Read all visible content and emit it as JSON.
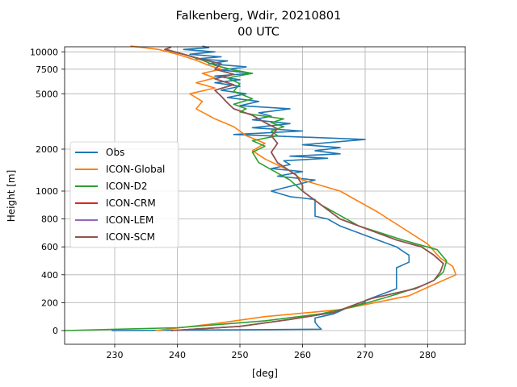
{
  "chart_data": {
    "type": "line",
    "title_line1": "Falkenberg, Wdir, 20210801",
    "title_line2": "00 UTC",
    "xlabel": "[deg]",
    "ylabel": "Height [m]",
    "xlim": [
      222,
      286
    ],
    "x_ticks": [
      230,
      240,
      250,
      260,
      270,
      280
    ],
    "y_ticks": [
      {
        "label": "0",
        "height": 0
      },
      {
        "label": "200",
        "height": 200
      },
      {
        "label": "400",
        "height": 400
      },
      {
        "label": "600",
        "height": 600
      },
      {
        "label": "800",
        "height": 800
      },
      {
        "label": "1000",
        "height": 1000
      },
      {
        "label": "2000",
        "height": 2000
      },
      {
        "label": "5000",
        "height": 5000
      },
      {
        "label": "7500",
        "height": 7500
      },
      {
        "label": "10000",
        "height": 10000
      }
    ],
    "y_scale": "piecewise: linear 0-1000 m, logarithmic above 1000 m",
    "grid": true,
    "legend_position": "center-left",
    "series": [
      {
        "name": "Obs",
        "color": "#1f77b4",
        "points": [
          [
            229.5,
            0
          ],
          [
            250,
            5
          ],
          [
            263,
            10
          ],
          [
            262.5,
            30
          ],
          [
            262,
            60
          ],
          [
            262,
            90
          ],
          [
            263,
            100
          ],
          [
            265,
            120
          ],
          [
            267,
            160
          ],
          [
            269,
            185
          ],
          [
            270,
            200
          ],
          [
            270,
            215
          ],
          [
            275,
            300
          ],
          [
            275,
            380
          ],
          [
            275,
            410
          ],
          [
            275,
            450
          ],
          [
            276,
            470
          ],
          [
            277,
            490
          ],
          [
            277,
            540
          ],
          [
            276,
            570
          ],
          [
            275,
            600
          ],
          [
            272,
            650
          ],
          [
            266,
            750
          ],
          [
            264,
            800
          ],
          [
            262,
            820
          ],
          [
            262,
            870
          ],
          [
            262,
            910
          ],
          [
            262,
            940
          ],
          [
            258,
            960
          ],
          [
            255,
            1000
          ],
          [
            262,
            1200
          ],
          [
            256,
            1280
          ],
          [
            260,
            1380
          ],
          [
            255,
            1450
          ],
          [
            258,
            1550
          ],
          [
            257,
            1650
          ],
          [
            264,
            1720
          ],
          [
            258,
            1780
          ],
          [
            266,
            1850
          ],
          [
            262,
            1950
          ],
          [
            266,
            2050
          ],
          [
            260,
            2150
          ],
          [
            270,
            2350
          ],
          [
            249,
            2550
          ],
          [
            260,
            2700
          ],
          [
            252,
            2850
          ],
          [
            258,
            3050
          ],
          [
            252,
            3250
          ],
          [
            255,
            3450
          ],
          [
            253,
            3650
          ],
          [
            258,
            3900
          ],
          [
            250,
            4100
          ],
          [
            253,
            4400
          ],
          [
            248,
            4700
          ],
          [
            251,
            5000
          ],
          [
            247,
            5300
          ],
          [
            250,
            5650
          ],
          [
            246,
            6000
          ],
          [
            250,
            6300
          ],
          [
            246,
            6700
          ],
          [
            252,
            7000
          ],
          [
            247,
            7400
          ],
          [
            251,
            7800
          ],
          [
            245,
            8200
          ],
          [
            248,
            8600
          ],
          [
            243,
            8900
          ],
          [
            247,
            9200
          ],
          [
            242,
            9600
          ],
          [
            246,
            10000
          ],
          [
            241,
            10400
          ],
          [
            245,
            10700
          ],
          [
            244,
            11000
          ]
        ]
      },
      {
        "name": "ICON-Global",
        "color": "#ff7f0e",
        "points": [
          [
            236.5,
            0
          ],
          [
            246,
            50
          ],
          [
            254,
            100
          ],
          [
            266,
            150
          ],
          [
            277,
            250
          ],
          [
            282,
            350
          ],
          [
            284.5,
            400
          ],
          [
            284,
            460
          ],
          [
            282,
            520
          ],
          [
            280,
            620
          ],
          [
            272,
            850
          ],
          [
            266,
            1000
          ],
          [
            260,
            1200
          ],
          [
            258,
            1400
          ],
          [
            254,
            1700
          ],
          [
            252,
            1950
          ],
          [
            254,
            2200
          ],
          [
            251,
            2500
          ],
          [
            249,
            2900
          ],
          [
            246,
            3300
          ],
          [
            243,
            3900
          ],
          [
            244,
            4400
          ],
          [
            242,
            5000
          ],
          [
            246,
            5500
          ],
          [
            243,
            6000
          ],
          [
            246,
            6500
          ],
          [
            244,
            7000
          ],
          [
            247,
            7500
          ],
          [
            245,
            8000
          ],
          [
            243,
            8700
          ],
          [
            240,
            9600
          ],
          [
            237,
            10400
          ],
          [
            232.5,
            11000
          ]
        ]
      },
      {
        "name": "ICON-D2",
        "color": "#2ca02c",
        "points": [
          [
            222,
            0
          ],
          [
            240,
            20
          ],
          [
            254,
            70
          ],
          [
            263,
            120
          ],
          [
            268,
            170
          ],
          [
            272,
            220
          ],
          [
            275,
            260
          ],
          [
            279,
            320
          ],
          [
            281,
            360
          ],
          [
            282.5,
            420
          ],
          [
            283,
            500
          ],
          [
            281.5,
            580
          ],
          [
            276,
            650
          ],
          [
            269,
            750
          ],
          [
            263,
            900
          ],
          [
            260,
            1000
          ],
          [
            258,
            1200
          ],
          [
            253,
            1600
          ],
          [
            252,
            1900
          ],
          [
            254,
            2100
          ],
          [
            252,
            2300
          ],
          [
            256,
            2500
          ],
          [
            255,
            2700
          ],
          [
            257,
            2900
          ],
          [
            255,
            3100
          ],
          [
            257,
            3300
          ],
          [
            252,
            3550
          ],
          [
            250,
            3700
          ],
          [
            251,
            3900
          ],
          [
            249,
            4200
          ],
          [
            252,
            4600
          ],
          [
            249,
            5200
          ],
          [
            250,
            5900
          ],
          [
            248,
            6500
          ],
          [
            252,
            7000
          ],
          [
            249,
            7400
          ],
          [
            246,
            8000
          ],
          [
            244,
            8700
          ],
          [
            241,
            9600
          ],
          [
            238,
            10500
          ]
        ]
      },
      {
        "name": "ICON-CRM",
        "color": "#d62728",
        "points": [
          [
            239,
            0
          ],
          [
            250,
            30
          ],
          [
            258,
            80
          ],
          [
            265,
            130
          ],
          [
            268,
            180
          ],
          [
            271,
            230
          ],
          [
            274,
            260
          ],
          [
            278,
            300
          ],
          [
            281,
            360
          ],
          [
            282,
            420
          ],
          [
            282.5,
            480
          ],
          [
            281,
            540
          ],
          [
            279,
            600
          ],
          [
            275,
            650
          ],
          [
            266,
            800
          ],
          [
            260,
            1000
          ],
          [
            260,
            1100
          ],
          [
            259,
            1300
          ],
          [
            256,
            1600
          ],
          [
            255,
            1900
          ],
          [
            256,
            2200
          ],
          [
            255,
            2500
          ],
          [
            256,
            2800
          ],
          [
            254,
            3100
          ],
          [
            252,
            3500
          ],
          [
            249,
            3900
          ],
          [
            248,
            4300
          ],
          [
            247,
            4800
          ],
          [
            246,
            5300
          ],
          [
            249,
            5800
          ],
          [
            246,
            6400
          ],
          [
            249,
            6900
          ],
          [
            246,
            7500
          ],
          [
            247,
            8200
          ],
          [
            244,
            8800
          ],
          [
            241,
            9600
          ],
          [
            238,
            10400
          ],
          [
            239,
            10800
          ]
        ]
      },
      {
        "name": "ICON-LEM",
        "color": "#9467bd",
        "points": [
          [
            239,
            0
          ],
          [
            250,
            30
          ],
          [
            258,
            80
          ],
          [
            265,
            130
          ],
          [
            268,
            180
          ],
          [
            271,
            230
          ],
          [
            274,
            260
          ],
          [
            278,
            300
          ],
          [
            281,
            360
          ],
          [
            282,
            420
          ],
          [
            282.5,
            480
          ],
          [
            281,
            540
          ],
          [
            279,
            600
          ],
          [
            275,
            650
          ],
          [
            266,
            800
          ],
          [
            260,
            1000
          ],
          [
            260,
            1100
          ],
          [
            259,
            1300
          ],
          [
            256,
            1600
          ],
          [
            255,
            1900
          ],
          [
            256,
            2200
          ],
          [
            255,
            2500
          ],
          [
            256,
            2800
          ],
          [
            254,
            3100
          ],
          [
            252,
            3500
          ],
          [
            249,
            3900
          ],
          [
            248,
            4300
          ],
          [
            247,
            4800
          ],
          [
            246,
            5300
          ],
          [
            249,
            5800
          ],
          [
            246,
            6400
          ],
          [
            249,
            6900
          ],
          [
            246,
            7500
          ],
          [
            247,
            8200
          ],
          [
            244,
            8800
          ],
          [
            241,
            9600
          ],
          [
            238,
            10400
          ],
          [
            239,
            10800
          ]
        ]
      },
      {
        "name": "ICON-SCM",
        "color": "#8c564b",
        "points": [
          [
            239,
            0
          ],
          [
            250,
            30
          ],
          [
            258,
            80
          ],
          [
            265,
            130
          ],
          [
            268,
            180
          ],
          [
            271,
            230
          ],
          [
            274,
            260
          ],
          [
            278,
            300
          ],
          [
            281,
            360
          ],
          [
            282,
            420
          ],
          [
            282.5,
            480
          ],
          [
            281,
            540
          ],
          [
            279,
            600
          ],
          [
            275,
            650
          ],
          [
            266,
            800
          ],
          [
            260,
            1000
          ],
          [
            260,
            1100
          ],
          [
            259,
            1300
          ],
          [
            256,
            1600
          ],
          [
            255,
            1900
          ],
          [
            256,
            2200
          ],
          [
            255,
            2500
          ],
          [
            256,
            2800
          ],
          [
            254,
            3100
          ],
          [
            252,
            3500
          ],
          [
            249,
            3900
          ],
          [
            248,
            4300
          ],
          [
            247,
            4800
          ],
          [
            246,
            5300
          ],
          [
            249,
            5800
          ],
          [
            246,
            6400
          ],
          [
            249,
            6900
          ],
          [
            246,
            7500
          ],
          [
            247,
            8200
          ],
          [
            244,
            8800
          ],
          [
            241,
            9600
          ],
          [
            238,
            10400
          ],
          [
            239,
            10800
          ]
        ]
      }
    ]
  }
}
